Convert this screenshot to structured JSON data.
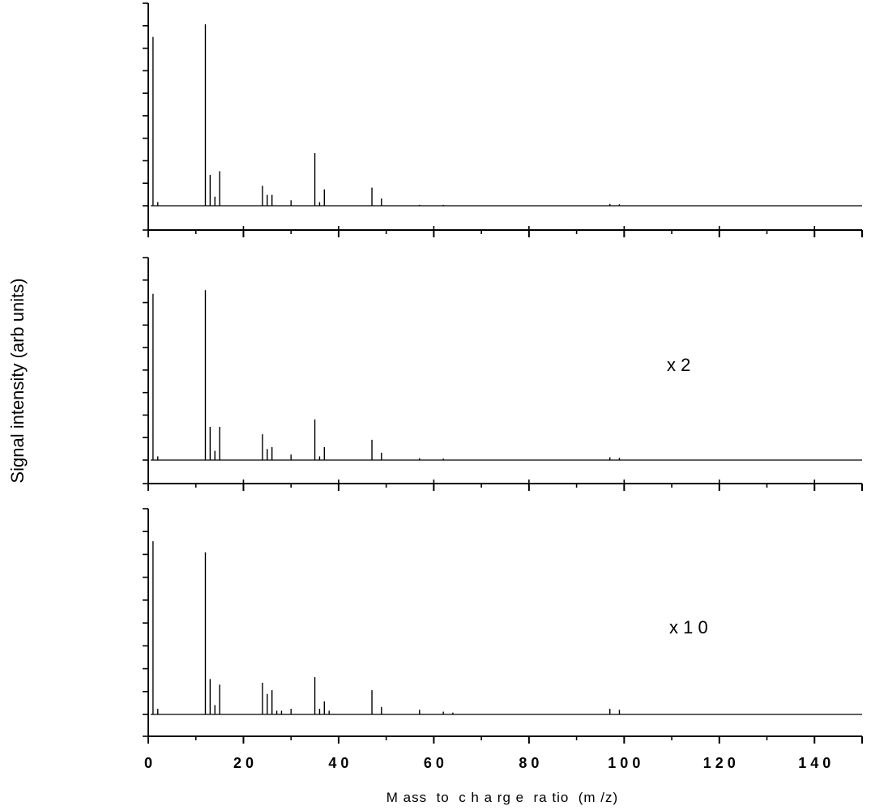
{
  "chart_data": {
    "type": "line",
    "xlabel": "M ass  to  c h a rg e  ra tio  (m /z)",
    "ylabel": "Signal intensity (arb units)",
    "xlim": [
      0,
      150
    ],
    "xticks": [
      "0",
      "2 0",
      "4 0",
      "6 0",
      "8 0",
      "1 0 0",
      "1 2 0",
      "1 4 0"
    ],
    "xtick_values": [
      0,
      20,
      40,
      60,
      80,
      100,
      120,
      140
    ],
    "grid": false,
    "legend": false,
    "panels": [
      {
        "annotation": "",
        "peaks": [
          {
            "mz": 1,
            "intensity": 0.93
          },
          {
            "mz": 2,
            "intensity": 0.02
          },
          {
            "mz": 12,
            "intensity": 1.0
          },
          {
            "mz": 13,
            "intensity": 0.17
          },
          {
            "mz": 14,
            "intensity": 0.05
          },
          {
            "mz": 15,
            "intensity": 0.19
          },
          {
            "mz": 24,
            "intensity": 0.11
          },
          {
            "mz": 25,
            "intensity": 0.06
          },
          {
            "mz": 26,
            "intensity": 0.06
          },
          {
            "mz": 30,
            "intensity": 0.03
          },
          {
            "mz": 35,
            "intensity": 0.29
          },
          {
            "mz": 36,
            "intensity": 0.02
          },
          {
            "mz": 37,
            "intensity": 0.09
          },
          {
            "mz": 47,
            "intensity": 0.1
          },
          {
            "mz": 49,
            "intensity": 0.04
          },
          {
            "mz": 57,
            "intensity": 0.005
          },
          {
            "mz": 62,
            "intensity": 0.005
          },
          {
            "mz": 97,
            "intensity": 0.01
          },
          {
            "mz": 99,
            "intensity": 0.008
          }
        ]
      },
      {
        "annotation": "x 2",
        "peaks": [
          {
            "mz": 1,
            "intensity": 0.9
          },
          {
            "mz": 2,
            "intensity": 0.02
          },
          {
            "mz": 12,
            "intensity": 0.92
          },
          {
            "mz": 13,
            "intensity": 0.18
          },
          {
            "mz": 14,
            "intensity": 0.05
          },
          {
            "mz": 15,
            "intensity": 0.18
          },
          {
            "mz": 24,
            "intensity": 0.14
          },
          {
            "mz": 25,
            "intensity": 0.06
          },
          {
            "mz": 26,
            "intensity": 0.07
          },
          {
            "mz": 30,
            "intensity": 0.03
          },
          {
            "mz": 35,
            "intensity": 0.22
          },
          {
            "mz": 36,
            "intensity": 0.02
          },
          {
            "mz": 37,
            "intensity": 0.07
          },
          {
            "mz": 47,
            "intensity": 0.11
          },
          {
            "mz": 49,
            "intensity": 0.04
          },
          {
            "mz": 57,
            "intensity": 0.01
          },
          {
            "mz": 62,
            "intensity": 0.008
          },
          {
            "mz": 97,
            "intensity": 0.015
          },
          {
            "mz": 99,
            "intensity": 0.012
          }
        ]
      },
      {
        "annotation": "x 1 0",
        "peaks": [
          {
            "mz": 1,
            "intensity": 0.93
          },
          {
            "mz": 2,
            "intensity": 0.03
          },
          {
            "mz": 12,
            "intensity": 0.87
          },
          {
            "mz": 13,
            "intensity": 0.19
          },
          {
            "mz": 14,
            "intensity": 0.05
          },
          {
            "mz": 15,
            "intensity": 0.16
          },
          {
            "mz": 24,
            "intensity": 0.17
          },
          {
            "mz": 25,
            "intensity": 0.11
          },
          {
            "mz": 26,
            "intensity": 0.13
          },
          {
            "mz": 27,
            "intensity": 0.02
          },
          {
            "mz": 28,
            "intensity": 0.02
          },
          {
            "mz": 30,
            "intensity": 0.03
          },
          {
            "mz": 35,
            "intensity": 0.2
          },
          {
            "mz": 36,
            "intensity": 0.03
          },
          {
            "mz": 37,
            "intensity": 0.07
          },
          {
            "mz": 38,
            "intensity": 0.02
          },
          {
            "mz": 47,
            "intensity": 0.13
          },
          {
            "mz": 49,
            "intensity": 0.04
          },
          {
            "mz": 57,
            "intensity": 0.025
          },
          {
            "mz": 62,
            "intensity": 0.015
          },
          {
            "mz": 64,
            "intensity": 0.01
          },
          {
            "mz": 97,
            "intensity": 0.03
          },
          {
            "mz": 99,
            "intensity": 0.025
          }
        ]
      }
    ]
  }
}
